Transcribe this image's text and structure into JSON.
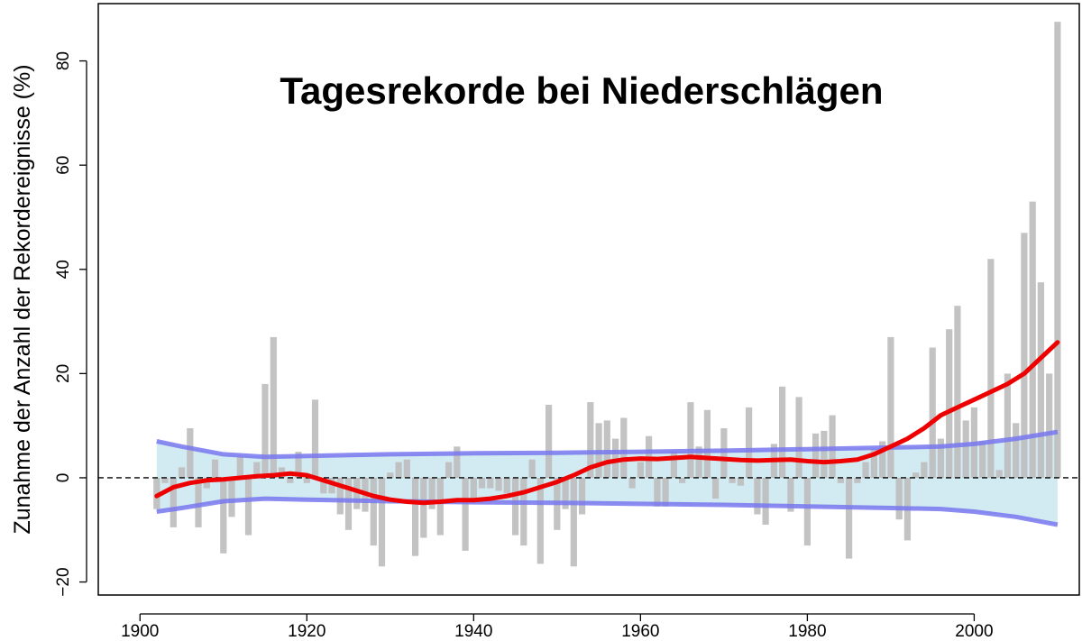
{
  "chart_data": {
    "type": "bar",
    "title": "Tagesrekorde bei Niederschlägen",
    "xlabel": "",
    "ylabel": "Zunahme der Anzahl der Rekordereignisse (%)",
    "xlim": [
      1895,
      2012.6
    ],
    "ylim": [
      -22.5,
      91
    ],
    "xticks": [
      1900,
      1920,
      1940,
      1960,
      1980,
      2000
    ],
    "yticks": [
      -20,
      0,
      20,
      40,
      60,
      80
    ],
    "ytick_labels": [
      "−20",
      "0",
      "20",
      "40",
      "60",
      "80"
    ],
    "grid": false,
    "legend": "none",
    "reference_line": {
      "y": 0,
      "style": "dashed"
    },
    "bars": {
      "name": "",
      "color": "#bdbdbd",
      "years": [
        1902,
        1903,
        1904,
        1905,
        1906,
        1907,
        1908,
        1909,
        1910,
        1911,
        1912,
        1913,
        1914,
        1915,
        1916,
        1917,
        1918,
        1919,
        1920,
        1921,
        1922,
        1923,
        1924,
        1925,
        1926,
        1927,
        1928,
        1929,
        1930,
        1931,
        1932,
        1933,
        1934,
        1935,
        1936,
        1937,
        1938,
        1939,
        1940,
        1941,
        1942,
        1943,
        1944,
        1945,
        1946,
        1947,
        1948,
        1949,
        1950,
        1951,
        1952,
        1953,
        1954,
        1955,
        1956,
        1957,
        1958,
        1959,
        1960,
        1961,
        1962,
        1963,
        1964,
        1965,
        1966,
        1967,
        1968,
        1969,
        1970,
        1971,
        1972,
        1973,
        1974,
        1975,
        1976,
        1977,
        1978,
        1979,
        1980,
        1981,
        1982,
        1983,
        1984,
        1985,
        1986,
        1987,
        1988,
        1989,
        1990,
        1991,
        1992,
        1993,
        1994,
        1995,
        1996,
        1997,
        1998,
        1999,
        2000,
        2001,
        2002,
        2003,
        2004,
        2005,
        2006,
        2007,
        2008,
        2009,
        2010
      ],
      "values": [
        -6,
        -1,
        -9.5,
        2,
        9.5,
        -9.5,
        -2,
        3.5,
        -14.5,
        -7.5,
        4,
        -11,
        3,
        18,
        27,
        2,
        -1,
        5,
        -1,
        15,
        -3,
        -3,
        -7,
        -10,
        -6,
        -6.5,
        -13,
        -17,
        1,
        3,
        3.5,
        -15,
        -11.5,
        -6,
        -11,
        3,
        6,
        -14,
        -4,
        -2,
        -2,
        -2.5,
        -3,
        -11,
        -13,
        3.5,
        -16.5,
        14,
        -10,
        -6,
        -17,
        -7,
        14.5,
        10.5,
        11,
        7.5,
        11.5,
        -2,
        3,
        8,
        -5.5,
        -5.5,
        5,
        -1,
        14.5,
        6,
        13,
        -4,
        9.5,
        -1,
        -1.5,
        13.5,
        -7,
        -9,
        6.5,
        17.5,
        -6.5,
        15.5,
        -13,
        8.5,
        9,
        12,
        -1,
        -15.5,
        -1,
        3,
        5.5,
        7,
        27,
        -8,
        -12,
        1,
        3,
        25,
        7.5,
        28.5,
        33,
        11,
        13.5,
        7,
        42,
        1.5,
        20,
        10.5,
        47,
        53,
        37.5,
        20,
        87.5
      ]
    },
    "series": [
      {
        "name": "",
        "type": "line",
        "color": "#ee0000",
        "x": [
          1902,
          1904,
          1906,
          1908,
          1910,
          1912,
          1914,
          1916,
          1918,
          1920,
          1922,
          1924,
          1926,
          1928,
          1930,
          1932,
          1934,
          1936,
          1938,
          1940,
          1942,
          1944,
          1946,
          1948,
          1950,
          1952,
          1954,
          1956,
          1958,
          1960,
          1962,
          1964,
          1966,
          1968,
          1970,
          1972,
          1974,
          1976,
          1978,
          1980,
          1982,
          1984,
          1986,
          1988,
          1990,
          1992,
          1994,
          1996,
          1998,
          2000,
          2002,
          2004,
          2006,
          2008,
          2010
        ],
        "y": [
          -3.5,
          -1.8,
          -1,
          -0.5,
          -0.3,
          0,
          0.3,
          0.5,
          0.8,
          0.5,
          -0.5,
          -1.5,
          -2.5,
          -3.5,
          -4.2,
          -4.6,
          -4.8,
          -4.6,
          -4.3,
          -4.3,
          -4,
          -3.5,
          -2.8,
          -1.8,
          -0.8,
          0.5,
          2,
          3,
          3.5,
          3.7,
          3.6,
          3.8,
          4,
          3.8,
          3.6,
          3.4,
          3.3,
          3.4,
          3.5,
          3.2,
          3,
          3.2,
          3.5,
          4.5,
          6,
          7.5,
          9.5,
          12,
          13.5,
          15,
          16.5,
          18,
          20,
          23,
          26
        ]
      }
    ],
    "band": {
      "color": "#add8e6",
      "edge_color": "#7777ee",
      "x": [
        1902,
        1905,
        1910,
        1915,
        1920,
        1930,
        1940,
        1950,
        1960,
        1970,
        1980,
        1990,
        1996,
        2000,
        2005,
        2010
      ],
      "upper": [
        7,
        6,
        4.5,
        4,
        4.2,
        4.5,
        4.7,
        4.8,
        5,
        5.2,
        5.5,
        5.8,
        6,
        6.5,
        7.5,
        8.8
      ],
      "lower": [
        -6.5,
        -5.8,
        -4.5,
        -4,
        -4.2,
        -4.5,
        -4.7,
        -4.8,
        -5,
        -5.2,
        -5.5,
        -5.8,
        -6,
        -6.5,
        -7.5,
        -9
      ]
    }
  }
}
